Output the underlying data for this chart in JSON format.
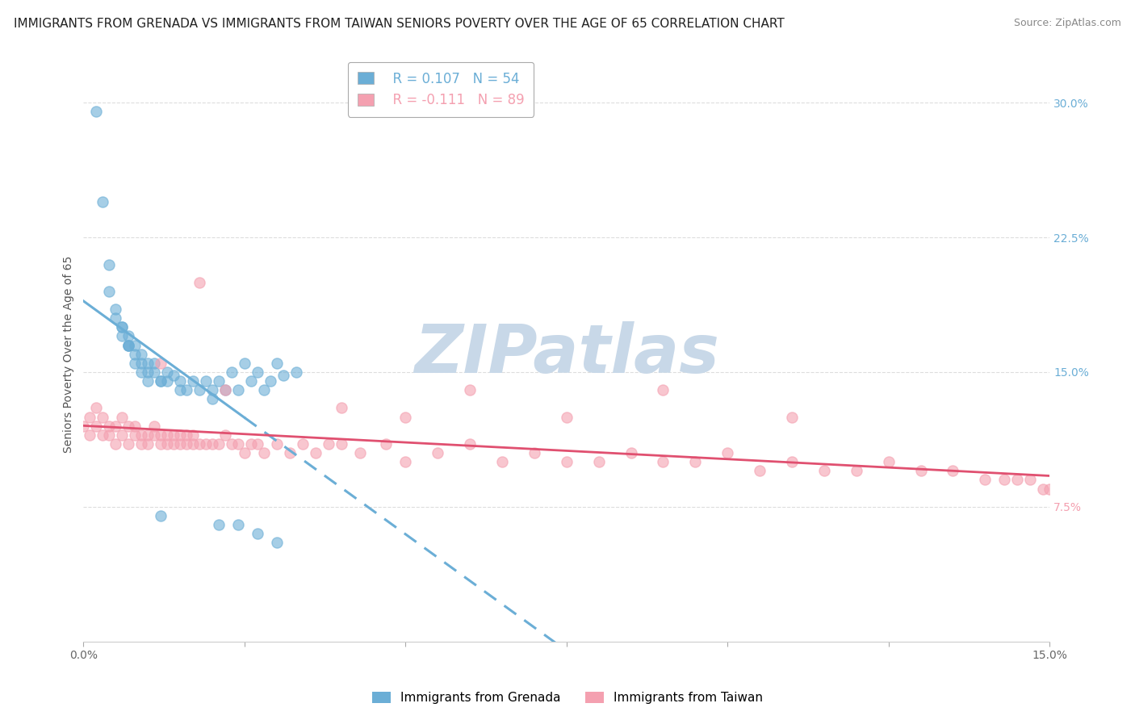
{
  "title": "IMMIGRANTS FROM GRENADA VS IMMIGRANTS FROM TAIWAN SENIORS POVERTY OVER THE AGE OF 65 CORRELATION CHART",
  "source": "Source: ZipAtlas.com",
  "ylabel": "Seniors Poverty Over the Age of 65",
  "xlim": [
    0.0,
    0.15
  ],
  "ylim": [
    0.0,
    0.32
  ],
  "ytick_right_values": [
    0.075,
    0.15,
    0.225,
    0.3
  ],
  "ytick_right_labels": [
    "7.5%",
    "15.0%",
    "22.5%",
    "30.0%"
  ],
  "grenada_color": "#6baed6",
  "taiwan_color": "#f4a0b0",
  "legend_R1": "R = 0.107",
  "legend_N1": "N = 54",
  "legend_R2": "R = -0.111",
  "legend_N2": "N = 89",
  "background_color": "#ffffff",
  "grid_color": "#dddddd",
  "title_fontsize": 11,
  "axis_label_fontsize": 10,
  "tick_fontsize": 10,
  "watermark_text": "ZIPatlas",
  "watermark_color": "#c8d8e8",
  "watermark_fontsize": 60,
  "grenada_x": [
    0.002,
    0.003,
    0.004,
    0.004,
    0.005,
    0.005,
    0.006,
    0.006,
    0.006,
    0.007,
    0.007,
    0.007,
    0.007,
    0.008,
    0.008,
    0.008,
    0.009,
    0.009,
    0.009,
    0.01,
    0.01,
    0.01,
    0.011,
    0.011,
    0.012,
    0.012,
    0.013,
    0.013,
    0.014,
    0.015,
    0.015,
    0.016,
    0.017,
    0.018,
    0.019,
    0.02,
    0.02,
    0.021,
    0.022,
    0.023,
    0.024,
    0.025,
    0.026,
    0.027,
    0.028,
    0.029,
    0.03,
    0.031,
    0.033,
    0.012,
    0.021,
    0.024,
    0.027,
    0.03
  ],
  "grenada_y": [
    0.295,
    0.245,
    0.21,
    0.195,
    0.185,
    0.18,
    0.175,
    0.175,
    0.17,
    0.17,
    0.165,
    0.165,
    0.165,
    0.165,
    0.16,
    0.155,
    0.16,
    0.155,
    0.15,
    0.155,
    0.15,
    0.145,
    0.155,
    0.15,
    0.145,
    0.145,
    0.15,
    0.145,
    0.148,
    0.145,
    0.14,
    0.14,
    0.145,
    0.14,
    0.145,
    0.14,
    0.135,
    0.145,
    0.14,
    0.15,
    0.14,
    0.155,
    0.145,
    0.15,
    0.14,
    0.145,
    0.155,
    0.148,
    0.15,
    0.07,
    0.065,
    0.065,
    0.06,
    0.055
  ],
  "taiwan_x": [
    0.0,
    0.001,
    0.001,
    0.002,
    0.002,
    0.003,
    0.003,
    0.004,
    0.004,
    0.005,
    0.005,
    0.006,
    0.006,
    0.007,
    0.007,
    0.008,
    0.008,
    0.009,
    0.009,
    0.01,
    0.01,
    0.011,
    0.011,
    0.012,
    0.012,
    0.013,
    0.013,
    0.014,
    0.014,
    0.015,
    0.015,
    0.016,
    0.016,
    0.017,
    0.017,
    0.018,
    0.019,
    0.02,
    0.021,
    0.022,
    0.023,
    0.024,
    0.025,
    0.026,
    0.027,
    0.028,
    0.03,
    0.032,
    0.034,
    0.036,
    0.038,
    0.04,
    0.043,
    0.047,
    0.05,
    0.055,
    0.06,
    0.065,
    0.07,
    0.075,
    0.08,
    0.085,
    0.09,
    0.095,
    0.1,
    0.105,
    0.11,
    0.115,
    0.12,
    0.125,
    0.13,
    0.135,
    0.14,
    0.143,
    0.145,
    0.147,
    0.149,
    0.15,
    0.151,
    0.152,
    0.012,
    0.018,
    0.022,
    0.04,
    0.05,
    0.06,
    0.075,
    0.09,
    0.11
  ],
  "taiwan_y": [
    0.12,
    0.125,
    0.115,
    0.12,
    0.13,
    0.115,
    0.125,
    0.12,
    0.115,
    0.12,
    0.11,
    0.115,
    0.125,
    0.12,
    0.11,
    0.115,
    0.12,
    0.11,
    0.115,
    0.115,
    0.11,
    0.115,
    0.12,
    0.11,
    0.115,
    0.11,
    0.115,
    0.115,
    0.11,
    0.115,
    0.11,
    0.11,
    0.115,
    0.11,
    0.115,
    0.11,
    0.11,
    0.11,
    0.11,
    0.115,
    0.11,
    0.11,
    0.105,
    0.11,
    0.11,
    0.105,
    0.11,
    0.105,
    0.11,
    0.105,
    0.11,
    0.11,
    0.105,
    0.11,
    0.1,
    0.105,
    0.11,
    0.1,
    0.105,
    0.1,
    0.1,
    0.105,
    0.1,
    0.1,
    0.105,
    0.095,
    0.1,
    0.095,
    0.095,
    0.1,
    0.095,
    0.095,
    0.09,
    0.09,
    0.09,
    0.09,
    0.085,
    0.085,
    0.09,
    0.085,
    0.155,
    0.2,
    0.14,
    0.13,
    0.125,
    0.14,
    0.125,
    0.14,
    0.125
  ]
}
